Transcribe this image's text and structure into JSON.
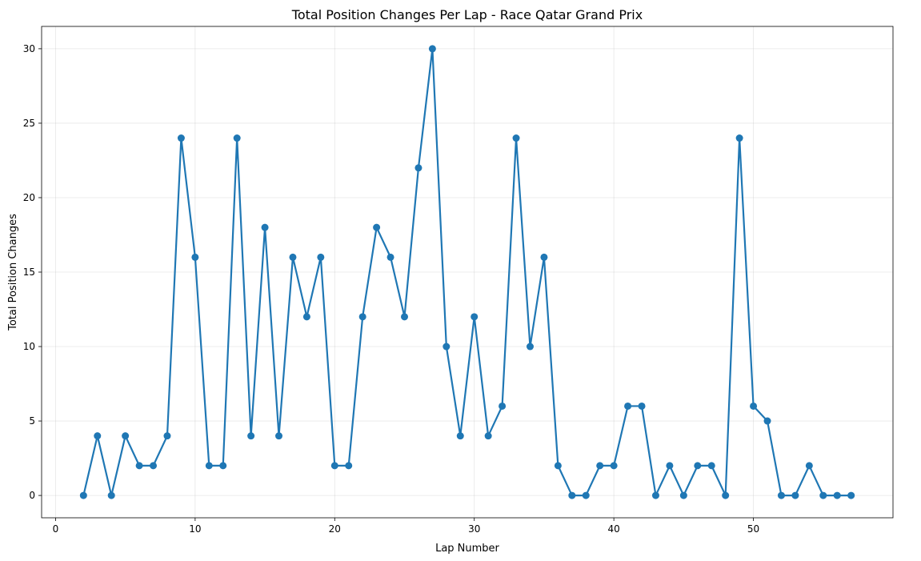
{
  "chart_data": {
    "type": "line",
    "title": "Total Position Changes Per Lap - Race Qatar Grand Prix",
    "xlabel": "Lap Number",
    "ylabel": "Total Position Changes",
    "xlim": [
      -1,
      60
    ],
    "ylim": [
      -1.5,
      31.5
    ],
    "xticks": [
      0,
      10,
      20,
      30,
      40,
      50
    ],
    "yticks": [
      0,
      5,
      10,
      15,
      20,
      25,
      30
    ],
    "grid": true,
    "color": "#1f77b4",
    "marker": "circle",
    "series": [
      {
        "x": [
          2,
          3,
          4,
          5,
          6,
          7,
          8,
          9,
          10,
          11,
          12,
          13,
          14,
          15,
          16,
          17,
          18,
          19,
          20,
          21,
          22,
          23,
          24,
          25,
          26,
          27,
          28,
          29,
          30,
          31,
          32,
          33,
          34,
          35,
          36,
          37,
          38,
          39,
          40,
          41,
          42,
          43,
          44,
          45,
          46,
          47,
          48,
          49,
          50,
          51,
          52,
          53,
          54,
          55,
          56,
          57
        ],
        "y": [
          0,
          4,
          0,
          4,
          2,
          2,
          4,
          24,
          16,
          2,
          2,
          24,
          4,
          18,
          4,
          16,
          12,
          16,
          2,
          2,
          12,
          18,
          16,
          12,
          22,
          30,
          10,
          4,
          12,
          4,
          6,
          24,
          10,
          16,
          2,
          0,
          0,
          2,
          2,
          6,
          6,
          0,
          2,
          0,
          2,
          2,
          0,
          24,
          6,
          5,
          0,
          0,
          2,
          0,
          0,
          0
        ]
      }
    ]
  }
}
